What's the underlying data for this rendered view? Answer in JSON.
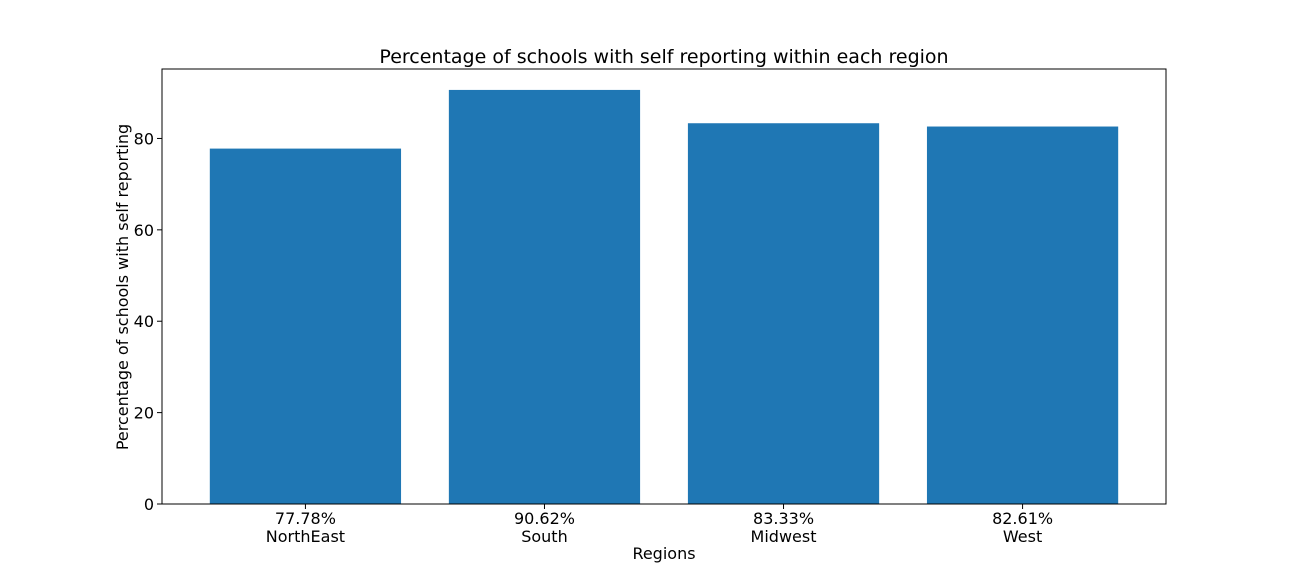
{
  "chart_data": {
    "type": "bar",
    "title": "Percentage of schools with self reporting within each region",
    "xlabel": "Regions",
    "ylabel": "Percentage of schools with self reporting",
    "categories": [
      "77.78%\nNorthEast",
      "90.62%\nSouth",
      "83.33%\nMidwest",
      "82.61%\nWest"
    ],
    "values": [
      77.78,
      90.62,
      83.33,
      82.61
    ],
    "ylim": [
      0,
      95.2
    ],
    "yticks": [
      0,
      20,
      40,
      60,
      80
    ],
    "grid": false,
    "bar_color": "#1f77b4"
  }
}
